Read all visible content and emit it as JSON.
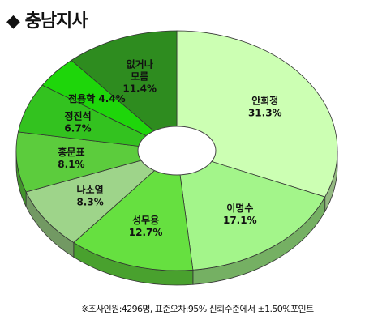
{
  "title": "◆ 충남지사",
  "footnote": "※조사인원:4296명, 표준오차:95% 신뢰수준에서 ±1.50%포인트",
  "chart_data": {
    "type": "pie",
    "title": "◆ 충남지사",
    "categories": [
      "안희정",
      "이명수",
      "성무용",
      "나소열",
      "홍문표",
      "정진석",
      "전용학",
      "없거나 모름"
    ],
    "values": [
      31.3,
      17.1,
      12.7,
      8.3,
      8.1,
      6.7,
      4.4,
      11.4
    ],
    "labels": [
      {
        "name": "안희정",
        "value": "31.3%"
      },
      {
        "name": "이명수",
        "value": "17.1%"
      },
      {
        "name": "성무용",
        "value": "12.7%"
      },
      {
        "name": "나소열",
        "value": "8.3%"
      },
      {
        "name": "홍문표",
        "value": "8.1%"
      },
      {
        "name": "정진석",
        "value": "6.7%"
      },
      {
        "name": "전용학",
        "value": "4.4%"
      },
      {
        "name": "없거나 모름",
        "value": "11.4%"
      }
    ],
    "colors": [
      "#ccffb3",
      "#a3f58a",
      "#66e040",
      "#9ed48a",
      "#5ccc3d",
      "#33c21f",
      "#1ed60a",
      "#2e8c1f"
    ],
    "legend": "none",
    "style": "3d-donut"
  }
}
